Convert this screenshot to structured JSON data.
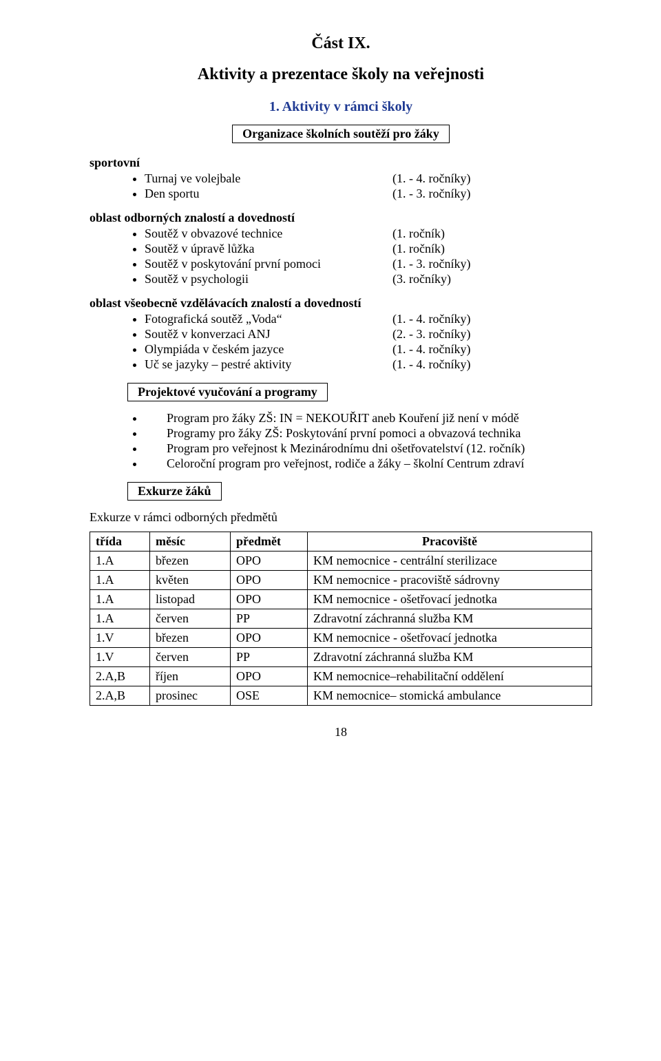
{
  "title_main": "Část IX.",
  "subtitle": "Aktivity a prezentace školy na veřejnosti",
  "numbered_heading": "1.    Aktivity v rámci školy",
  "box1": "Organizace školních soutěží pro žáky",
  "sport_label": "sportovní",
  "sport_items": [
    {
      "label": "Turnaj ve volejbale",
      "note": "(1. - 4. ročníky)"
    },
    {
      "label": "Den sportu",
      "note": "(1. - 3. ročníky)"
    }
  ],
  "odbor_label": "oblast odborných znalostí a dovedností",
  "odbor_items": [
    {
      "label": "Soutěž v obvazové technice",
      "note": "(1. ročník)"
    },
    {
      "label": "Soutěž v úpravě lůžka",
      "note": "(1. ročník)"
    },
    {
      "label": "Soutěž v poskytování první pomoci",
      "note": "(1. - 3. ročníky)"
    },
    {
      "label": "Soutěž v psychologii",
      "note": "(3. ročníky)"
    }
  ],
  "vseob_label": "oblast všeobecně vzdělávacích znalostí a dovedností",
  "vseob_items": [
    {
      "label": "Fotografická soutěž „Voda“",
      "note": "(1. - 4. ročníky)"
    },
    {
      "label": "Soutěž v konverzaci ANJ",
      "note": "(2. - 3. ročníky)"
    },
    {
      "label": "Olympiáda v českém jazyce",
      "note": "(1. - 4. ročníky)"
    },
    {
      "label": "Uč se jazyky – pestré aktivity",
      "note": "(1. - 4. ročníky)"
    }
  ],
  "box2": "Projektové vyučování a programy",
  "projekt_items": [
    "Program pro žáky ZŠ: IN = NEKOUŘIT aneb Kouření již není v módě",
    "Programy pro žáky ZŠ: Poskytování první pomoci a obvazová technika",
    "Program pro veřejnost k Mezinárodnímu dni ošetřovatelství (12. ročník)",
    "Celoroční program pro veřejnost, rodiče a žáky – školní Centrum zdraví"
  ],
  "box3": "Exkurze žáků",
  "excursion_label": "Exkurze v rámci odborných předmětů",
  "table": {
    "columns": [
      "třída",
      "měsíc",
      "předmět",
      "Pracoviště"
    ],
    "col_align": [
      "left",
      "left",
      "left",
      "center"
    ],
    "rows": [
      [
        "1.A",
        "březen",
        "OPO",
        "KM nemocnice - centrální sterilizace"
      ],
      [
        "1.A",
        "květen",
        "OPO",
        "KM nemocnice - pracoviště sádrovny"
      ],
      [
        "1.A",
        "listopad",
        "OPO",
        "KM nemocnice - ošetřovací jednotka"
      ],
      [
        "1.A",
        "červen",
        "PP",
        "Zdravotní záchranná služba KM"
      ],
      [
        "1.V",
        "březen",
        "OPO",
        "KM nemocnice - ošetřovací jednotka"
      ],
      [
        "1.V",
        "červen",
        "PP",
        "Zdravotní záchranná služba KM"
      ],
      [
        "2.A,B",
        "říjen",
        "OPO",
        "KM nemocnice–rehabilitační oddělení"
      ],
      [
        "2.A,B",
        "prosinec",
        "OSE",
        "KM nemocnice– stomická ambulance"
      ]
    ]
  },
  "page_number": "18",
  "colors": {
    "heading_blue": "#1f3a93",
    "text": "#000000",
    "background": "#ffffff",
    "border": "#000000"
  }
}
